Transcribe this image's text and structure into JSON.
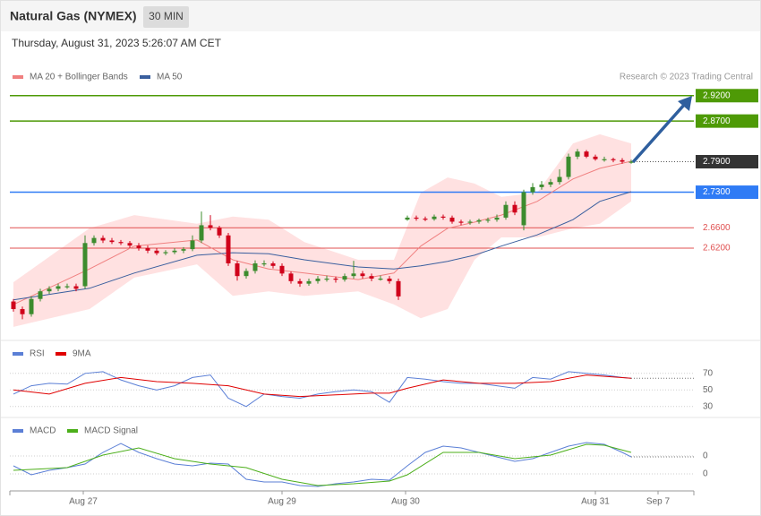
{
  "header": {
    "title": "Natural Gas (NYMEX)",
    "interval": "30 MIN",
    "timestamp": "Thursday, August 31, 2023 5:26:07 AM CET",
    "credit": "Research © 2023 Trading Central"
  },
  "chart_data": [
    {
      "type": "candlestick",
      "ylim": [
        2.456,
        2.976
      ],
      "up_color": "#3c8c2e",
      "down_color": "#d0021b",
      "candles": [
        [
          2.515,
          2.52,
          2.495,
          2.5
        ],
        [
          2.5,
          2.505,
          2.48,
          2.49
        ],
        [
          2.49,
          2.525,
          2.485,
          2.52
        ],
        [
          2.52,
          2.54,
          2.515,
          2.535
        ],
        [
          2.535,
          2.545,
          2.53,
          2.54
        ],
        [
          2.54,
          2.55,
          2.535,
          2.545
        ],
        [
          2.545,
          2.55,
          2.54,
          2.545
        ],
        [
          2.545,
          2.55,
          2.535,
          2.54
        ],
        [
          2.545,
          2.645,
          2.54,
          2.63
        ],
        [
          2.63,
          2.645,
          2.625,
          2.64
        ],
        [
          2.64,
          2.645,
          2.63,
          2.635
        ],
        [
          2.635,
          2.64,
          2.628,
          2.632
        ],
        [
          2.632,
          2.636,
          2.626,
          2.63
        ],
        [
          2.63,
          2.634,
          2.62,
          2.625
        ],
        [
          2.625,
          2.63,
          2.615,
          2.62
        ],
        [
          2.62,
          2.625,
          2.61,
          2.615
        ],
        [
          2.615,
          2.62,
          2.606,
          2.61
        ],
        [
          2.61,
          2.616,
          2.606,
          2.612
        ],
        [
          2.612,
          2.62,
          2.608,
          2.615
        ],
        [
          2.615,
          2.622,
          2.61,
          2.618
        ],
        [
          2.618,
          2.645,
          2.614,
          2.635
        ],
        [
          2.635,
          2.692,
          2.63,
          2.665
        ],
        [
          2.665,
          2.685,
          2.655,
          2.66
        ],
        [
          2.66,
          2.664,
          2.64,
          2.645
        ],
        [
          2.645,
          2.65,
          2.585,
          2.59
        ],
        [
          2.59,
          2.595,
          2.556,
          2.565
        ],
        [
          2.565,
          2.58,
          2.56,
          2.575
        ],
        [
          2.575,
          2.596,
          2.57,
          2.59
        ],
        [
          2.59,
          2.596,
          2.584,
          2.59
        ],
        [
          2.59,
          2.594,
          2.58,
          2.585
        ],
        [
          2.585,
          2.59,
          2.565,
          2.57
        ],
        [
          2.57,
          2.574,
          2.55,
          2.555
        ],
        [
          2.555,
          2.56,
          2.544,
          2.55
        ],
        [
          2.55,
          2.56,
          2.546,
          2.555
        ],
        [
          2.555,
          2.565,
          2.55,
          2.56
        ],
        [
          2.56,
          2.566,
          2.554,
          2.56
        ],
        [
          2.56,
          2.564,
          2.552,
          2.558
        ],
        [
          2.558,
          2.57,
          2.554,
          2.565
        ],
        [
          2.565,
          2.595,
          2.56,
          2.57
        ],
        [
          2.57,
          2.575,
          2.56,
          2.565
        ],
        [
          2.565,
          2.57,
          2.555,
          2.56
        ],
        [
          2.56,
          2.566,
          2.556,
          2.56
        ],
        [
          2.56,
          2.565,
          2.55,
          2.555
        ],
        [
          2.555,
          2.56,
          2.518,
          2.525
        ],
        [
          2.676,
          2.684,
          2.674,
          2.68
        ],
        [
          2.68,
          2.684,
          2.674,
          2.678
        ],
        [
          2.678,
          2.682,
          2.673,
          2.677
        ],
        [
          2.677,
          2.686,
          2.674,
          2.682
        ],
        [
          2.682,
          2.686,
          2.676,
          2.68
        ],
        [
          2.68,
          2.684,
          2.668,
          2.672
        ],
        [
          2.672,
          2.676,
          2.665,
          2.67
        ],
        [
          2.67,
          2.676,
          2.666,
          2.672
        ],
        [
          2.672,
          2.678,
          2.668,
          2.675
        ],
        [
          2.675,
          2.68,
          2.67,
          2.676
        ],
        [
          2.676,
          2.686,
          2.672,
          2.68
        ],
        [
          2.68,
          2.712,
          2.676,
          2.705
        ],
        [
          2.705,
          2.712,
          2.685,
          2.69
        ],
        [
          2.665,
          2.735,
          2.655,
          2.73
        ],
        [
          2.73,
          2.748,
          2.725,
          2.74
        ],
        [
          2.74,
          2.752,
          2.735,
          2.745
        ],
        [
          2.745,
          2.756,
          2.74,
          2.75
        ],
        [
          2.75,
          2.775,
          2.745,
          2.76
        ],
        [
          2.76,
          2.806,
          2.755,
          2.8
        ],
        [
          2.8,
          2.815,
          2.795,
          2.81
        ],
        [
          2.81,
          2.813,
          2.797,
          2.8
        ],
        [
          2.8,
          2.804,
          2.792,
          2.795
        ],
        [
          2.795,
          2.8,
          2.79,
          2.795
        ],
        [
          2.795,
          2.798,
          2.789,
          2.793
        ],
        [
          2.793,
          2.797,
          2.786,
          2.79
        ],
        [
          2.79,
          2.794,
          2.786,
          2.79
        ]
      ],
      "series": [
        {
          "name": "MA 20 + Bollinger Bands",
          "color": "#f08080",
          "band_color": "#ffe1e1",
          "x": [
            0,
            8.5,
            13.5,
            20.5,
            24.5,
            28.5,
            32.5,
            38.5,
            42.5,
            45.5,
            48.5,
            51.5,
            54.5,
            58.5,
            62.5,
            65.5,
            69
          ],
          "values": [
            2.509,
            2.579,
            2.624,
            2.636,
            2.597,
            2.579,
            2.571,
            2.558,
            2.571,
            2.624,
            2.659,
            2.671,
            2.685,
            2.712,
            2.756,
            2.777,
            2.791
          ],
          "upper": [
            2.553,
            2.659,
            2.685,
            2.668,
            2.682,
            2.676,
            2.632,
            2.597,
            2.597,
            2.729,
            2.759,
            2.747,
            2.721,
            2.729,
            2.826,
            2.844,
            2.826
          ],
          "lower": [
            2.465,
            2.5,
            2.562,
            2.588,
            2.526,
            2.535,
            2.526,
            2.535,
            2.509,
            2.482,
            2.5,
            2.597,
            2.641,
            2.641,
            2.659,
            2.668,
            2.712
          ]
        },
        {
          "name": "MA 50",
          "color": "#3a5f9e",
          "x": [
            0,
            8.5,
            13.5,
            20.5,
            24.5,
            28.5,
            32.5,
            38.5,
            42.5,
            45.5,
            48.5,
            51.5,
            54.5,
            58.5,
            62.5,
            65.5,
            69
          ],
          "values": [
            2.518,
            2.541,
            2.571,
            2.606,
            2.611,
            2.609,
            2.597,
            2.583,
            2.579,
            2.585,
            2.594,
            2.606,
            2.624,
            2.646,
            2.676,
            2.712,
            2.731
          ]
        }
      ],
      "levels": [
        {
          "value": 2.92,
          "label": "2.9200",
          "color": "#4e9a06",
          "boxed": true,
          "dotted": false
        },
        {
          "value": 2.87,
          "label": "2.8700",
          "color": "#4e9a06",
          "boxed": true,
          "dotted": false
        },
        {
          "value": 2.79,
          "label": "2.7900",
          "color": "#333333",
          "boxed": true,
          "dotted": true
        },
        {
          "value": 2.73,
          "label": "2.7300",
          "color": "#2f7bf5",
          "boxed": true,
          "dotted": false
        },
        {
          "value": 2.66,
          "label": "2.6600",
          "color": "#e05050",
          "boxed": false,
          "dotted": false
        },
        {
          "value": 2.62,
          "label": "2.6200",
          "color": "#e05050",
          "boxed": false,
          "dotted": false
        }
      ]
    },
    {
      "type": "line",
      "ylim": [
        20,
        100
      ],
      "yticks": [
        30,
        50,
        70
      ],
      "series": [
        {
          "name": "RSI",
          "color": "#5b7fd6",
          "x": [
            0,
            2,
            4,
            6,
            8,
            10,
            12,
            14,
            16,
            18,
            20,
            22,
            24,
            26,
            28,
            30,
            32,
            34,
            36,
            38,
            40,
            42,
            44,
            46,
            48,
            50,
            52,
            54,
            56,
            58,
            60,
            62,
            64,
            66,
            68,
            69
          ],
          "values": [
            45,
            55,
            58,
            57,
            70,
            72,
            62,
            55,
            50,
            55,
            65,
            68,
            40,
            30,
            45,
            42,
            40,
            45,
            48,
            50,
            48,
            35,
            65,
            63,
            60,
            58,
            58,
            55,
            52,
            65,
            63,
            72,
            70,
            68,
            65,
            64
          ]
        },
        {
          "name": "9MA",
          "color": "#e00000",
          "x": [
            0,
            4,
            8,
            12,
            16,
            20,
            24,
            28,
            32,
            36,
            40,
            42,
            44,
            48,
            52,
            56,
            60,
            64,
            69
          ],
          "values": [
            50,
            45,
            58,
            65,
            60,
            58,
            55,
            45,
            42,
            44,
            46,
            46,
            52,
            62,
            58,
            58,
            60,
            68,
            64
          ]
        }
      ]
    },
    {
      "type": "line",
      "ylim": [
        -0.02,
        0.01
      ],
      "yticks": [
        {
          "value": -0.0056,
          "label": "0"
        },
        {
          "value": -0.0136,
          "label": "0"
        }
      ],
      "xlim": [
        -0.4,
        76
      ],
      "xticks": [
        {
          "value": 7.8,
          "label": "Aug 27"
        },
        {
          "value": 30,
          "label": "Aug 29"
        },
        {
          "value": 43.8,
          "label": "Aug 30"
        },
        {
          "value": 65,
          "label": "Aug 31"
        },
        {
          "value": 72,
          "label": "Sep 7"
        }
      ],
      "series": [
        {
          "name": "MACD",
          "color": "#5b7fd6",
          "x": [
            0,
            2,
            4,
            6,
            8,
            10,
            12,
            14,
            16,
            18,
            20,
            22,
            24,
            26,
            28,
            30,
            32,
            34,
            36,
            38,
            40,
            42,
            44,
            46,
            48,
            50,
            52,
            54,
            56,
            58,
            60,
            62,
            64,
            66,
            68,
            69
          ],
          "values": [
            -0.01,
            -0.014,
            -0.012,
            -0.0108,
            -0.0092,
            -0.004,
            0,
            -0.004,
            -0.0068,
            -0.0092,
            -0.01,
            -0.0088,
            -0.0092,
            -0.016,
            -0.0172,
            -0.0172,
            -0.0188,
            -0.0192,
            -0.018,
            -0.0172,
            -0.016,
            -0.0164,
            -0.01,
            -0.004,
            -0.0012,
            -0.002,
            -0.004,
            -0.006,
            -0.008,
            -0.0068,
            -0.004,
            -0.0012,
            0.0004,
            -0.0004,
            -0.004,
            -0.006
          ]
        },
        {
          "name": "MACD Signal",
          "color": "#4caf1a",
          "x": [
            0,
            6,
            10,
            14,
            18,
            22,
            26,
            30,
            34,
            38,
            42,
            44,
            48,
            52,
            56,
            60,
            64,
            66,
            69
          ],
          "values": [
            -0.012,
            -0.0108,
            -0.0052,
            -0.002,
            -0.0068,
            -0.0092,
            -0.0108,
            -0.016,
            -0.0188,
            -0.018,
            -0.0168,
            -0.014,
            -0.004,
            -0.004,
            -0.0068,
            -0.0052,
            -0.0004,
            -0.0008,
            -0.004
          ]
        }
      ]
    }
  ]
}
